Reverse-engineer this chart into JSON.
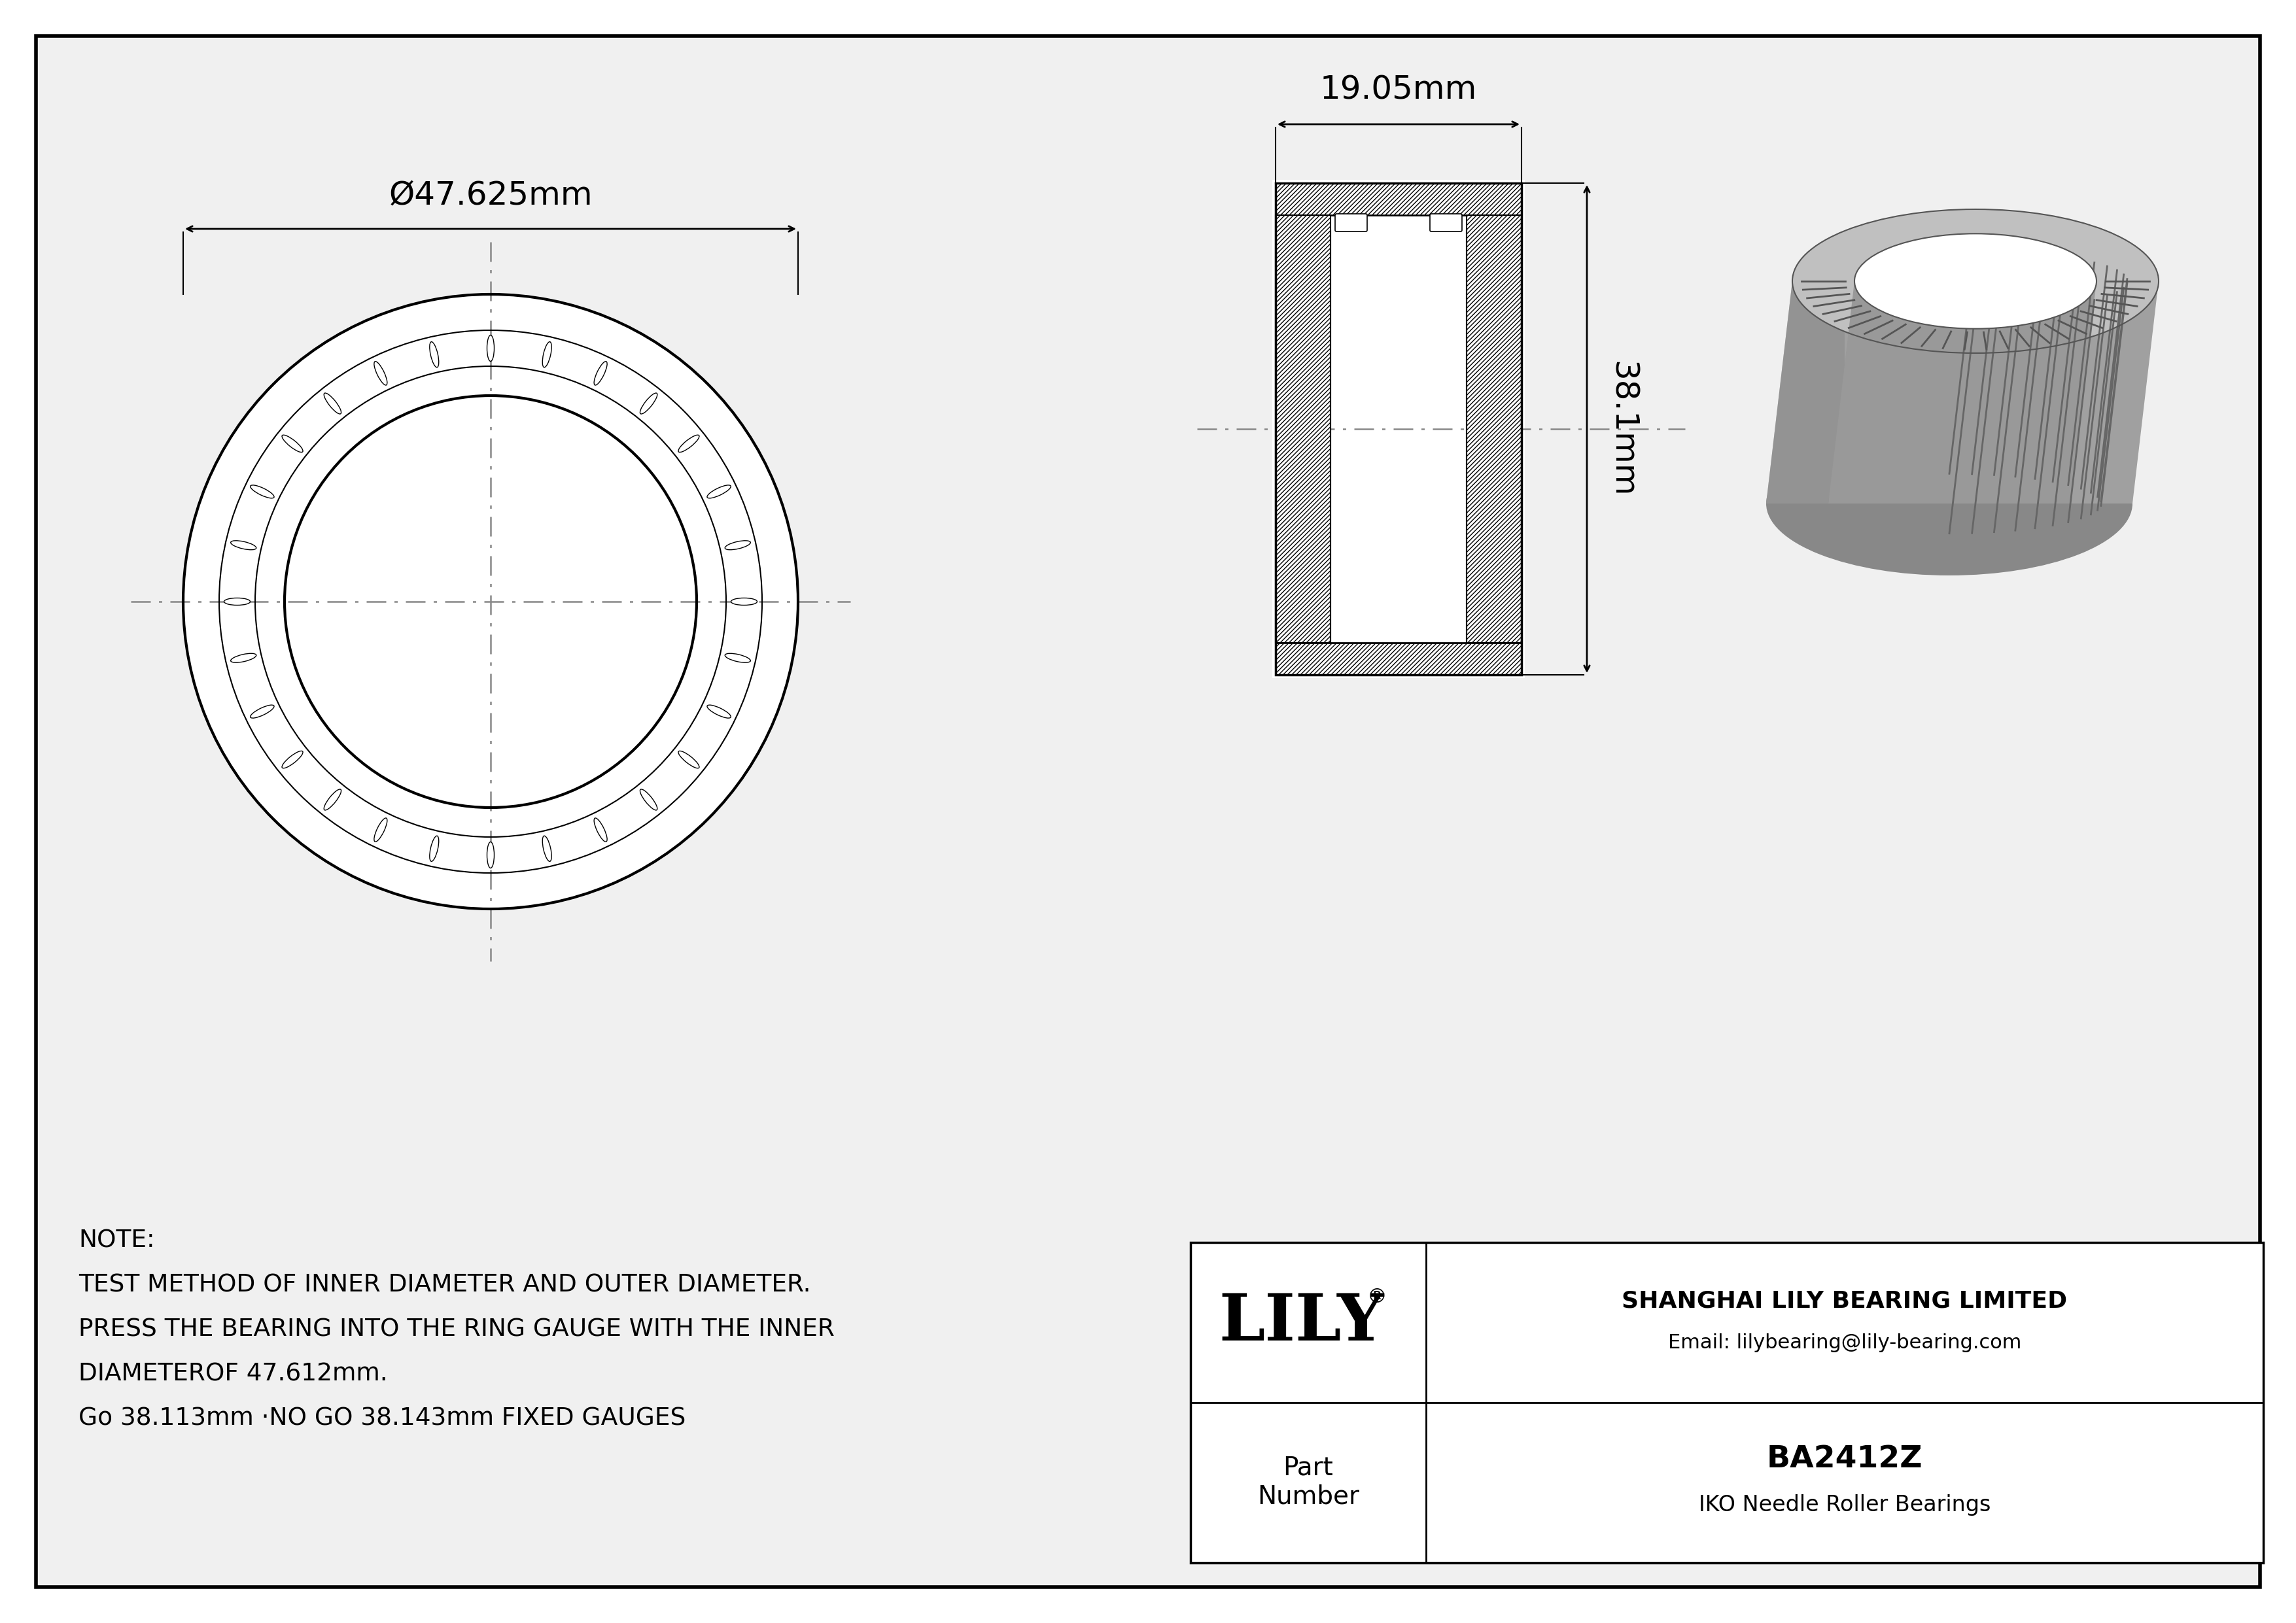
{
  "bg_color": "#ffffff",
  "outer_bg": "#e8e8e8",
  "line_color": "#000000",
  "centerline_color": "#888888",
  "gray_3d": "#aaaaaa",
  "gray_3d_dark": "#888888",
  "gray_3d_light": "#bbbbbb",
  "outer_diameter_label": "Ø47.625mm",
  "width_label": "19.05mm",
  "height_label": "38.1mm",
  "note_line1": "NOTE:",
  "note_line2": "TEST METHOD OF INNER DIAMETER AND OUTER DIAMETER.",
  "note_line3": "PRESS THE BEARING INTO THE RING GAUGE WITH THE INNER",
  "note_line4": "DIAMETEROF 47.612mm.",
  "note_line5": "Go 38.113mm ·NO GO 38.143mm FIXED GAUGES",
  "company": "SHANGHAI LILY BEARING LIMITED",
  "email": "Email: lilybearing@lily-bearing.com",
  "part_label": "Part\nNumber",
  "part_number": "BA2412Z",
  "bearing_type": "IKO Needle Roller Bearings",
  "lily_text": "LILY"
}
